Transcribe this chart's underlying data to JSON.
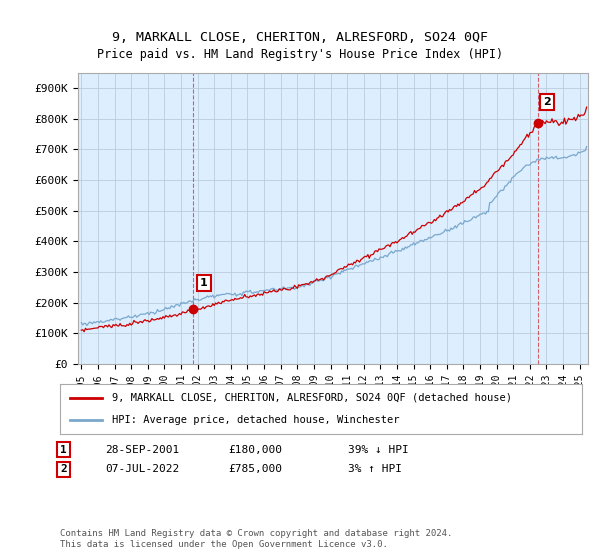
{
  "title": "9, MARKALL CLOSE, CHERITON, ALRESFORD, SO24 0QF",
  "subtitle": "Price paid vs. HM Land Registry's House Price Index (HPI)",
  "ylabel_ticks": [
    "£0",
    "£100K",
    "£200K",
    "£300K",
    "£400K",
    "£500K",
    "£600K",
    "£700K",
    "£800K",
    "£900K"
  ],
  "ylim": [
    0,
    950000
  ],
  "xlim_start": 1994.8,
  "xlim_end": 2025.5,
  "legend_line1": "9, MARKALL CLOSE, CHERITON, ALRESFORD, SO24 0QF (detached house)",
  "legend_line2": "HPI: Average price, detached house, Winchester",
  "annotation1_label": "1",
  "annotation1_date": "28-SEP-2001",
  "annotation1_price": "£180,000",
  "annotation1_hpi": "39% ↓ HPI",
  "annotation2_label": "2",
  "annotation2_date": "07-JUL-2022",
  "annotation2_price": "£785,000",
  "annotation2_hpi": "3% ↑ HPI",
  "footnote": "Contains HM Land Registry data © Crown copyright and database right 2024.\nThis data is licensed under the Open Government Licence v3.0.",
  "sale1_x": 2001.75,
  "sale1_y": 180000,
  "sale2_x": 2022.5,
  "sale2_y": 785000,
  "color_property": "#cc0000",
  "color_hpi": "#7aa8cc",
  "background_chart": "#ddeeff",
  "background_fig": "#ffffff",
  "grid_color": "#bbccdd"
}
